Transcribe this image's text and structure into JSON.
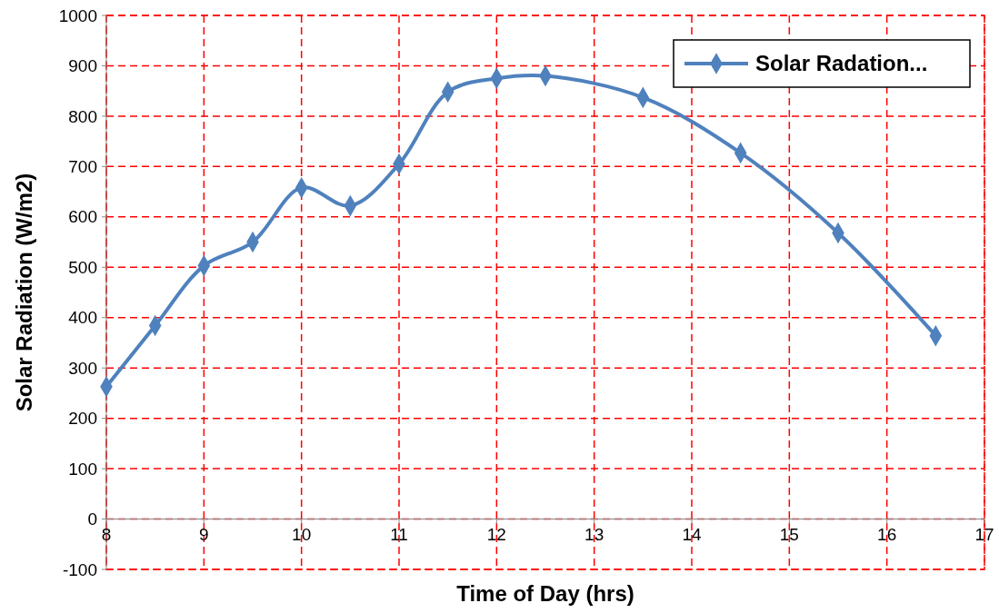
{
  "chart_data": {
    "type": "line",
    "xlabel": "Time of Day (hrs)",
    "ylabel": "Solar Radiation (W/m2)",
    "x": [
      8,
      8.5,
      9,
      9.5,
      10,
      10.5,
      11,
      11.5,
      12,
      12.5,
      13.5,
      14.5,
      15.5,
      16.5
    ],
    "series": [
      {
        "name": "Solar Radation...",
        "color": "#4f81bd",
        "values": [
          263,
          384,
          503,
          550,
          658,
          622,
          705,
          848,
          875,
          880,
          837,
          727,
          568,
          364
        ]
      }
    ],
    "xlim": [
      8,
      17
    ],
    "xticks": [
      8,
      9,
      10,
      11,
      12,
      13,
      14,
      15,
      16,
      17
    ],
    "ylim": [
      -100,
      1000
    ],
    "yticks": [
      -100,
      0,
      100,
      200,
      300,
      400,
      500,
      600,
      700,
      800,
      900,
      1000
    ],
    "grid": true,
    "legend": "top right",
    "marker": "diamond",
    "line_style": "solid"
  }
}
